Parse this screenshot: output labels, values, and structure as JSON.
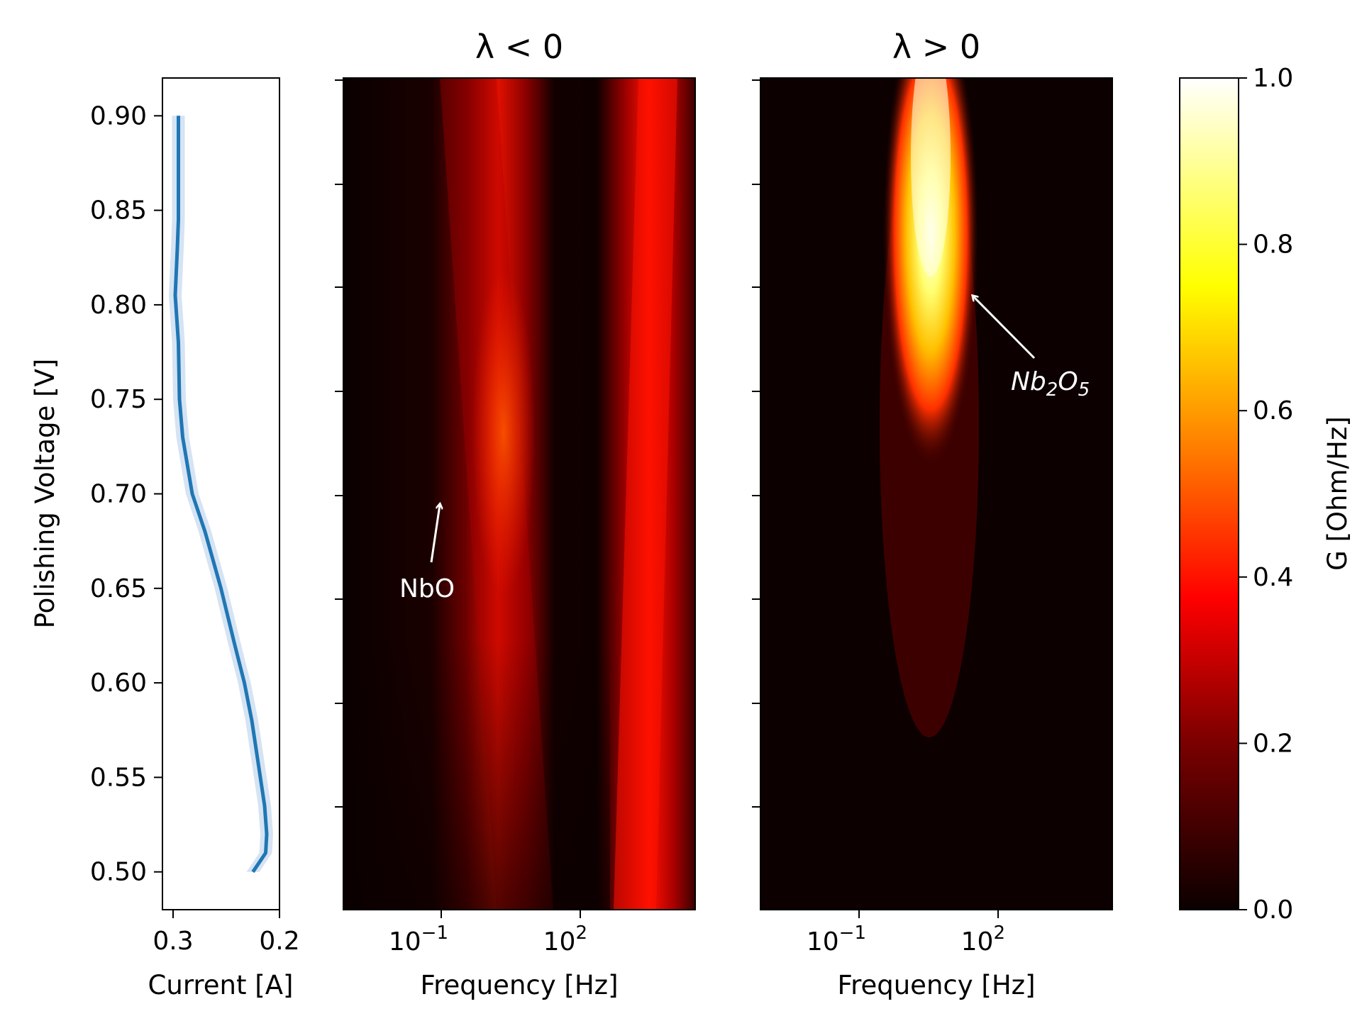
{
  "chart_data": [
    {
      "type": "line",
      "panel": "current-vs-voltage",
      "xlabel": "Current [A]",
      "ylabel": "Polishing Voltage [V]",
      "x_tick_labels": [
        "0.3",
        "0.2"
      ],
      "y_tick_labels": [
        "0.90",
        "0.85",
        "0.80",
        "0.75",
        "0.70",
        "0.65",
        "0.60",
        "0.55",
        "0.50"
      ],
      "x_inverted": true,
      "xlim": [
        0.31,
        0.2
      ],
      "ylim": [
        0.48,
        0.92
      ],
      "y_ticks": [
        0.9,
        0.85,
        0.8,
        0.75,
        0.7,
        0.65,
        0.6,
        0.55,
        0.5
      ],
      "x_ticks": [
        0.3,
        0.2
      ],
      "line_color": "#1f77b4",
      "band_color": "#aec7e8",
      "points": [
        {
          "y": 0.5,
          "x": 0.225
        },
        {
          "y": 0.51,
          "x": 0.213
        },
        {
          "y": 0.52,
          "x": 0.212
        },
        {
          "y": 0.535,
          "x": 0.214
        },
        {
          "y": 0.55,
          "x": 0.218
        },
        {
          "y": 0.58,
          "x": 0.226
        },
        {
          "y": 0.6,
          "x": 0.233
        },
        {
          "y": 0.62,
          "x": 0.242
        },
        {
          "y": 0.65,
          "x": 0.255
        },
        {
          "y": 0.68,
          "x": 0.27
        },
        {
          "y": 0.7,
          "x": 0.282
        },
        {
          "y": 0.73,
          "x": 0.291
        },
        {
          "y": 0.75,
          "x": 0.294
        },
        {
          "y": 0.78,
          "x": 0.295
        },
        {
          "y": 0.805,
          "x": 0.298
        },
        {
          "y": 0.83,
          "x": 0.296
        },
        {
          "y": 0.845,
          "x": 0.295
        },
        {
          "y": 0.87,
          "x": 0.295
        },
        {
          "y": 0.9,
          "x": 0.295
        }
      ]
    },
    {
      "type": "heatmap",
      "panel": "lambda-negative",
      "title": "λ < 0",
      "xlabel": "Frequency [Hz]",
      "x_scale": "log",
      "x_tick_labels": [
        "10",
        "−1",
        "10",
        "2"
      ],
      "annotation": "NbO",
      "colormap": "hot",
      "description_ridges": [
        {
          "log10_freq_at_voltage": [
            [
              0.5,
              1.1
            ],
            [
              0.6,
              0.8
            ],
            [
              0.7,
              0.6
            ],
            [
              0.75,
              0.5
            ],
            [
              0.8,
              0.4
            ],
            [
              0.9,
              0.2
            ]
          ],
          "peak_value": 0.48
        },
        {
          "log10_freq_at_voltage": [
            [
              0.5,
              3.3
            ],
            [
              0.6,
              3.5
            ],
            [
              0.7,
              3.8
            ],
            [
              0.8,
              4.0
            ],
            [
              0.9,
              4.2
            ]
          ],
          "peak_value": 0.42
        }
      ]
    },
    {
      "type": "heatmap",
      "panel": "lambda-positive",
      "title": "λ > 0",
      "xlabel": "Frequency [Hz]",
      "x_scale": "log",
      "x_tick_labels": [
        "10",
        "−1",
        "10",
        "2"
      ],
      "annotation": "Nb2O5",
      "colormap": "hot",
      "description_ridges": [
        {
          "log10_freq_at_voltage": [
            [
              0.6,
              0.7
            ],
            [
              0.7,
              0.7
            ],
            [
              0.75,
              0.8
            ],
            [
              0.8,
              0.9
            ],
            [
              0.85,
              0.9
            ],
            [
              0.9,
              0.9
            ]
          ],
          "peak_value": 1.0
        }
      ]
    }
  ],
  "colorbar": {
    "label": "G [Ohm/Hz]",
    "tick_labels": [
      "1.0",
      "0.8",
      "0.6",
      "0.4",
      "0.2",
      "0.0"
    ],
    "range": [
      0.0,
      1.0
    ]
  },
  "annotations": {
    "nbo": "NbO",
    "nb2o5_main1": "Nb",
    "nb2o5_sub1": "2",
    "nb2o5_main2": "O",
    "nb2o5_sub2": "5"
  }
}
